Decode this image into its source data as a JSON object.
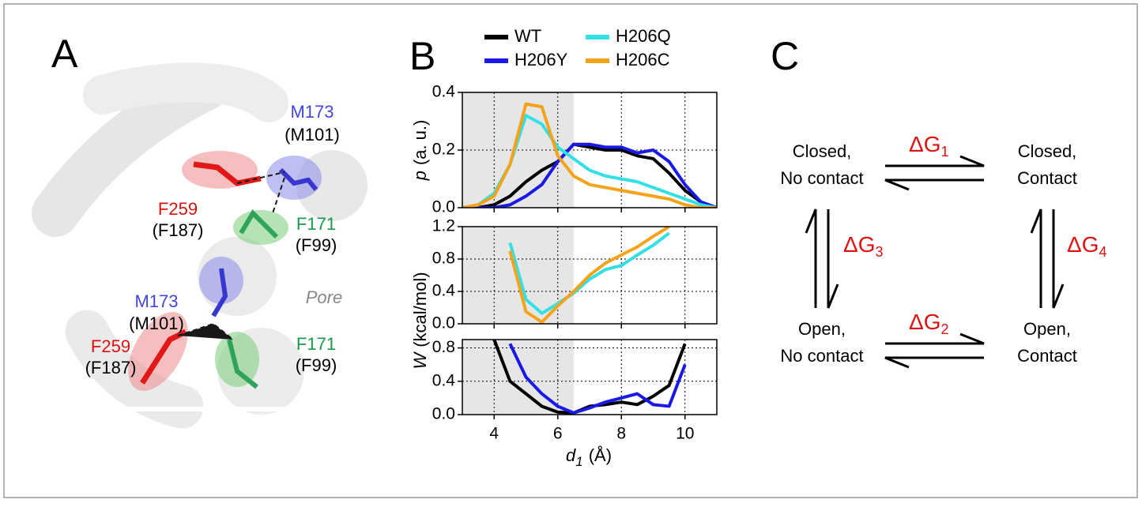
{
  "panels": {
    "a": {
      "letter": "A",
      "labels": [
        {
          "name": "M173",
          "alt": "(M101)"
        },
        {
          "name": "F259",
          "alt": "(F187)"
        },
        {
          "name": "F171",
          "alt": "(F99)"
        },
        {
          "name": "M173",
          "alt": "(M101)"
        },
        {
          "name": "F259",
          "alt": "(F187)"
        },
        {
          "name": "F171",
          "alt": "(F99)"
        }
      ],
      "pore": "Pore"
    },
    "b": {
      "letter": "B"
    },
    "c": {
      "letter": "C",
      "states": [
        {
          "line1": "Closed,",
          "line2": "No contact"
        },
        {
          "line1": "Closed,",
          "line2": "Contact"
        },
        {
          "line1": "Open,",
          "line2": "No contact"
        },
        {
          "line1": "Open,",
          "line2": "Contact"
        }
      ],
      "energies": [
        {
          "main": "ΔG",
          "sub": "1"
        },
        {
          "main": "ΔG",
          "sub": "2"
        },
        {
          "main": "ΔG",
          "sub": "3"
        },
        {
          "main": "ΔG",
          "sub": "4"
        }
      ]
    }
  },
  "chart_data": [
    {
      "type": "line",
      "y_label": {
        "symbol": "p",
        "unit": "(a. u.)"
      },
      "legend": "top",
      "grid": true,
      "shaded_region": [
        3,
        6.5
      ],
      "xlim": [
        3,
        11
      ],
      "xticks": [
        4,
        6,
        8,
        10
      ],
      "ylim": [
        0,
        0.4
      ],
      "yticks": [
        {
          "value": 0,
          "label": "0.0"
        },
        0.2,
        0.4
      ],
      "x": [
        3,
        3.5,
        4,
        4.5,
        5,
        5.5,
        6,
        6.5,
        7,
        7.5,
        8,
        8.5,
        9,
        9.5,
        10,
        10.5,
        11
      ],
      "series": [
        {
          "name": "WT",
          "color": "#000000",
          "values": [
            0,
            0,
            0.01,
            0.04,
            0.09,
            0.13,
            0.16,
            0.22,
            0.21,
            0.2,
            0.2,
            0.18,
            0.17,
            0.12,
            0.06,
            0.02,
            0
          ]
        },
        {
          "name": "H206Y",
          "color": "#1a1ae6",
          "values": [
            0,
            0,
            0,
            0.01,
            0.04,
            0.08,
            0.16,
            0.22,
            0.22,
            0.21,
            0.21,
            0.19,
            0.2,
            0.16,
            0.08,
            0.02,
            0
          ]
        },
        {
          "name": "H206Q",
          "color": "#33e0e6",
          "values": [
            0,
            0.01,
            0.05,
            0.15,
            0.32,
            0.29,
            0.21,
            0.17,
            0.13,
            0.11,
            0.1,
            0.09,
            0.07,
            0.05,
            0.03,
            0.01,
            0
          ]
        },
        {
          "name": "H206C",
          "color": "#f5a31a",
          "values": [
            0,
            0.01,
            0.04,
            0.15,
            0.36,
            0.35,
            0.18,
            0.11,
            0.08,
            0.07,
            0.06,
            0.05,
            0.04,
            0.03,
            0.01,
            0,
            0
          ]
        }
      ]
    },
    {
      "type": "line",
      "y_label": {
        "symbol": "W",
        "unit": "(kcal/mol)"
      },
      "grid": true,
      "shaded_region": [
        3,
        6.5
      ],
      "xlim": [
        3,
        11
      ],
      "xticks": [
        4,
        6,
        8,
        10
      ],
      "ylim": [
        0,
        1.2
      ],
      "yticks": [
        {
          "value": 0,
          "label": "0.0"
        },
        0.4,
        0.8,
        1.2
      ],
      "x": [
        3,
        3.5,
        4,
        4.5,
        5,
        5.5,
        6,
        6.5,
        7,
        7.5,
        8,
        8.5,
        9,
        9.5,
        10,
        10.5,
        11
      ],
      "series": [
        {
          "name": "H206Q",
          "color": "#33e0e6",
          "values": [
            null,
            null,
            null,
            1.0,
            0.3,
            0.13,
            0.25,
            0.38,
            0.55,
            0.67,
            0.72,
            0.85,
            0.97,
            1.12,
            null,
            null,
            null
          ]
        },
        {
          "name": "H206C",
          "color": "#f5a31a",
          "values": [
            null,
            null,
            null,
            0.9,
            0.15,
            0.02,
            0.22,
            0.4,
            0.6,
            0.75,
            0.85,
            0.95,
            1.08,
            1.2,
            null,
            null,
            null
          ]
        }
      ]
    },
    {
      "type": "line",
      "x_label": {
        "symbol": "d",
        "sub": "1",
        "unit": "(Å)"
      },
      "grid": true,
      "shaded_region": [
        3,
        6.5
      ],
      "xlim": [
        3,
        11
      ],
      "xticks": [
        4,
        6,
        8,
        10
      ],
      "ylim": [
        0,
        0.9
      ],
      "yticks": [
        {
          "value": 0,
          "label": "0.0"
        },
        0.4,
        0.8
      ],
      "x": [
        3,
        3.5,
        4,
        4.5,
        5,
        5.5,
        6,
        6.5,
        7,
        7.5,
        8,
        8.5,
        9,
        9.5,
        10,
        10.5,
        11
      ],
      "series": [
        {
          "name": "WT",
          "color": "#000000",
          "values": [
            null,
            null,
            0.9,
            0.4,
            0.25,
            0.1,
            0.03,
            0.02,
            0.1,
            0.12,
            0.15,
            0.12,
            0.22,
            0.35,
            0.85,
            null,
            null
          ]
        },
        {
          "name": "H206Y",
          "color": "#1a1ae6",
          "values": [
            null,
            null,
            null,
            0.85,
            0.45,
            0.25,
            0.1,
            0.02,
            0.08,
            0.15,
            0.2,
            0.25,
            0.12,
            0.1,
            0.6,
            null,
            null
          ]
        }
      ]
    }
  ]
}
